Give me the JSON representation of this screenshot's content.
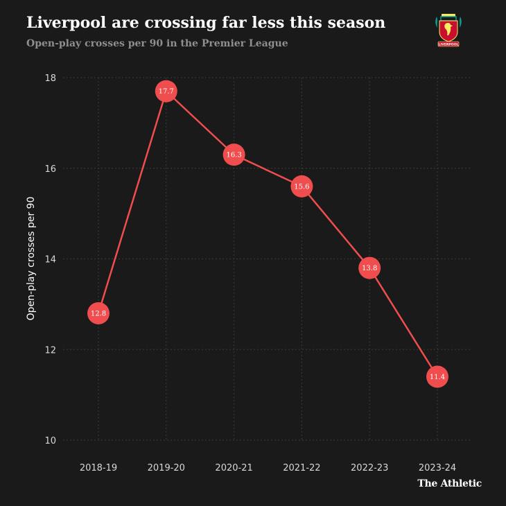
{
  "header": {
    "title": "Liverpool are crossing far less this season",
    "subtitle": "Open-play crosses per 90 in the Premier League"
  },
  "logo": {
    "icon": "liverpool-crest-icon",
    "text": "LIVERPOOL",
    "colors": {
      "red": "#c8102e",
      "teal": "#00a398",
      "gold": "#f6eb61"
    }
  },
  "brand": {
    "text": "The Athletic"
  },
  "colors": {
    "background": "#1a1a1a",
    "line": "#f04e4e",
    "marker": "#f04e4e",
    "grid": "#3c3c3c",
    "axis_text": "#d9d9d9"
  },
  "chart_data": {
    "type": "line",
    "title": "Liverpool are crossing far less this season",
    "subtitle": "Open-play crosses per 90 in the Premier League",
    "xlabel": "",
    "ylabel": "Open-play crosses per 90",
    "categories": [
      "2018-19",
      "2019-20",
      "2020-21",
      "2021-22",
      "2022-23",
      "2023-24"
    ],
    "series": [
      {
        "name": "Open-play crosses per 90",
        "values": [
          12.8,
          17.7,
          16.3,
          15.6,
          13.8,
          11.4
        ]
      }
    ],
    "data_labels": [
      "12.8",
      "17.7",
      "16.3",
      "15.6",
      "13.8",
      "11.4"
    ],
    "ylim": [
      10,
      18
    ],
    "yticks": [
      10,
      12,
      14,
      16,
      18
    ],
    "grid": true,
    "legend": "none"
  }
}
